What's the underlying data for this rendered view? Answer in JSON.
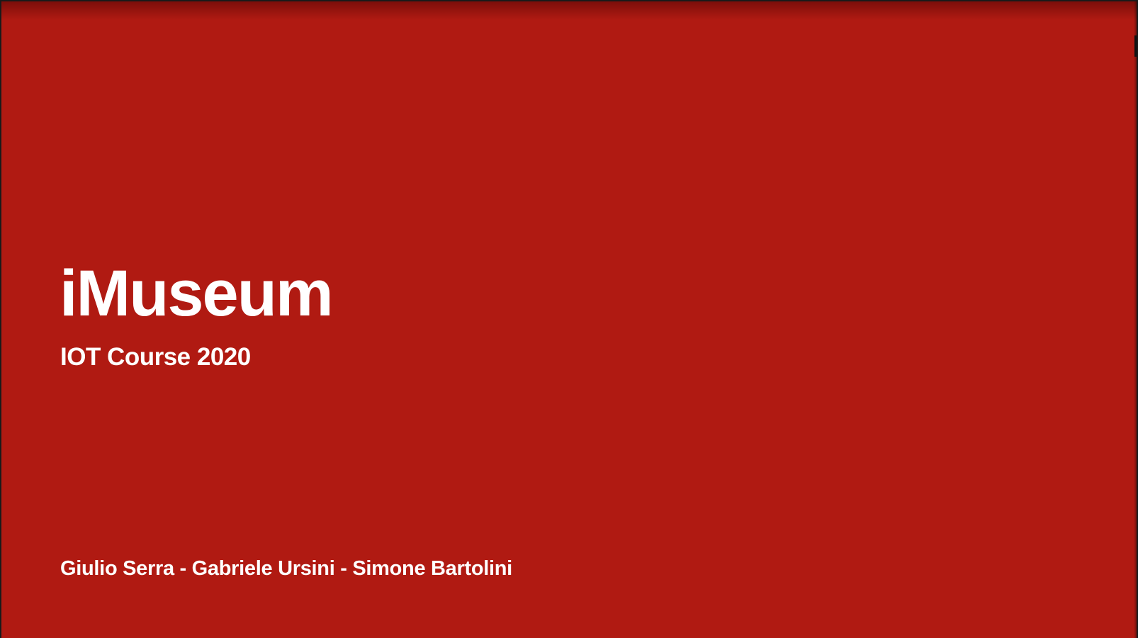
{
  "slide": {
    "title": "iMuseum",
    "subtitle": "IOT Course 2020",
    "authors": "Giulio Serra - Gabriele Ursini - Simone Bartolini"
  },
  "colors": {
    "background": "#b01a12",
    "text": "#ffffff"
  }
}
